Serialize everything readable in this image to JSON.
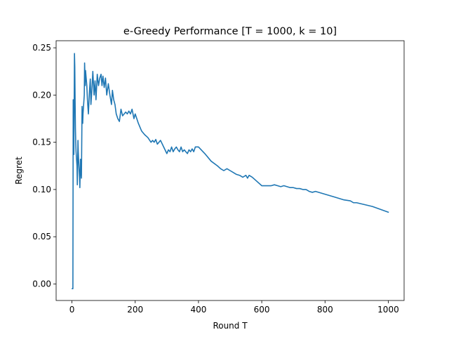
{
  "chart_data": {
    "type": "line",
    "title": "e-Greedy Performance [T = 1000, k = 10]",
    "xlabel": "Round T",
    "ylabel": "Regret",
    "xlim": [
      -50,
      1050
    ],
    "ylim": [
      -0.0175,
      0.2575
    ],
    "xticks": [
      0,
      200,
      400,
      600,
      800,
      1000
    ],
    "xtick_labels": [
      "0",
      "200",
      "400",
      "600",
      "800",
      "1000"
    ],
    "yticks": [
      0.0,
      0.05,
      0.1,
      0.15,
      0.2,
      0.25
    ],
    "ytick_labels": [
      "0.00",
      "0.05",
      "0.10",
      "0.15",
      "0.20",
      "0.25"
    ],
    "grid": false,
    "series": [
      {
        "name": "Regret",
        "color": "#1f77b4",
        "x": [
          1,
          3,
          4,
          5,
          6,
          7,
          8,
          9,
          10,
          11,
          12,
          13,
          14,
          16,
          17,
          19,
          20,
          22,
          24,
          25,
          27,
          29,
          30,
          32,
          34,
          35,
          37,
          39,
          40,
          42,
          43,
          45,
          47,
          49,
          52,
          55,
          58,
          60,
          63,
          66,
          70,
          73,
          76,
          80,
          84,
          88,
          92,
          95,
          98,
          102,
          106,
          110,
          115,
          120,
          125,
          128,
          132,
          136,
          140,
          145,
          150,
          155,
          160,
          165,
          170,
          175,
          180,
          185,
          190,
          196,
          200,
          210,
          220,
          230,
          240,
          250,
          255,
          260,
          265,
          270,
          280,
          290,
          300,
          305,
          310,
          315,
          320,
          325,
          330,
          335,
          340,
          345,
          350,
          355,
          360,
          365,
          370,
          375,
          380,
          385,
          390,
          400,
          420,
          440,
          460,
          470,
          480,
          490,
          500,
          510,
          520,
          530,
          540,
          550,
          555,
          560,
          570,
          580,
          600,
          610,
          620,
          630,
          640,
          650,
          660,
          670,
          680,
          690,
          700,
          710,
          720,
          730,
          740,
          750,
          760,
          770,
          800,
          830,
          840,
          860,
          880,
          890,
          900,
          950,
          1000
        ],
        "y": [
          -0.005,
          -0.005,
          0.195,
          0.14,
          0.137,
          0.188,
          0.244,
          0.23,
          0.195,
          0.165,
          0.15,
          0.14,
          0.135,
          0.125,
          0.105,
          0.152,
          0.14,
          0.125,
          0.112,
          0.102,
          0.132,
          0.118,
          0.112,
          0.188,
          0.17,
          0.18,
          0.19,
          0.2,
          0.234,
          0.21,
          0.226,
          0.218,
          0.21,
          0.195,
          0.18,
          0.202,
          0.217,
          0.19,
          0.205,
          0.225,
          0.2,
          0.215,
          0.195,
          0.222,
          0.21,
          0.218,
          0.222,
          0.21,
          0.22,
          0.208,
          0.218,
          0.2,
          0.212,
          0.2,
          0.19,
          0.205,
          0.195,
          0.19,
          0.18,
          0.175,
          0.172,
          0.185,
          0.178,
          0.18,
          0.182,
          0.18,
          0.183,
          0.18,
          0.185,
          0.175,
          0.18,
          0.17,
          0.162,
          0.158,
          0.155,
          0.15,
          0.152,
          0.15,
          0.153,
          0.148,
          0.152,
          0.145,
          0.138,
          0.142,
          0.14,
          0.145,
          0.14,
          0.143,
          0.145,
          0.142,
          0.14,
          0.145,
          0.14,
          0.142,
          0.14,
          0.138,
          0.142,
          0.14,
          0.143,
          0.14,
          0.145,
          0.145,
          0.138,
          0.13,
          0.125,
          0.122,
          0.12,
          0.122,
          0.12,
          0.118,
          0.116,
          0.115,
          0.113,
          0.115,
          0.112,
          0.115,
          0.113,
          0.11,
          0.104,
          0.104,
          0.104,
          0.104,
          0.105,
          0.104,
          0.103,
          0.104,
          0.103,
          0.102,
          0.102,
          0.101,
          0.101,
          0.1,
          0.1,
          0.098,
          0.097,
          0.098,
          0.095,
          0.092,
          0.091,
          0.089,
          0.088,
          0.086,
          0.086,
          0.082,
          0.076
        ]
      }
    ]
  }
}
